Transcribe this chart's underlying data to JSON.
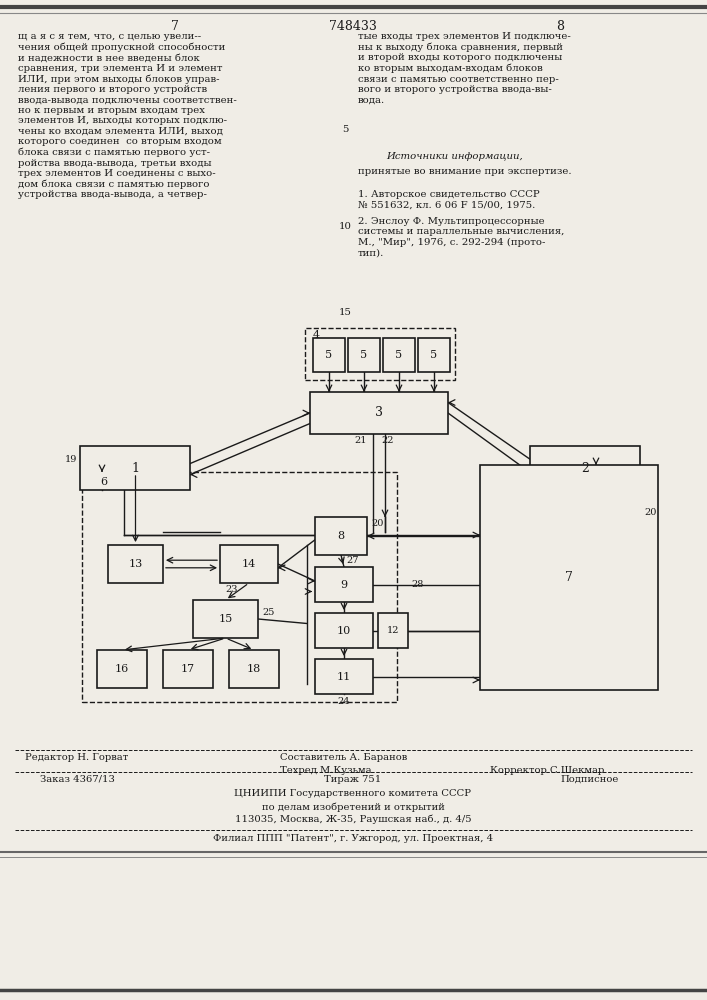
{
  "page_num_left": "7",
  "patent_num": "748433",
  "page_num_right": "8",
  "left_text": "щ а я с я тем, что, с целью увели--\nчения общей пропускной способности\nи надежности в нее введены блок\nсравнения, три элемента И и элемент\nИЛИ, при этом выходы блоков управ-\nления первого и второго устройств\nввода-вывода подключены соответствен-\nно к первым и вторым входам трех\nэлементов И, выходы которых подклю-\nчены ко входам элемента ИЛИ, выход\nкоторого соединен  со вторым входом\nблока связи с памятью первого уст-\nройства ввода-вывода, третьи входы\nтрех элементов И соединены с выхо-\nдом блока связи с памятью первого\nустройства ввода-вывода, а четвер-",
  "right_text_top": "тые входы трех элементов И подключе-\nны к выходу блока сравнения, первый\nи второй входы которого подключены\nко вторым выходам-входам блоков\nсвязи с памятью соответственно пер-\nвого и второго устройства ввода-вы-\nвода.",
  "line_num_5": "5",
  "sources_header": "Источники информации,",
  "sources_subheader": "принятые во внимание при экспертизе.",
  "line_num_10": "10",
  "source_1": "1. Авторское свидетельство СССР\n№ 551632, кл. 6 06 F 15/00, 1975.",
  "source_2": "2. Энслоу Ф. Мультипроцессорные\nсистемы и параллельные вычисления,\nМ., \"Мир\", 1976, с. 292-294 (прото-\nтип).",
  "line_num_15": "15",
  "editor_line": "Редактор Н. Горват",
  "composer_line": "Составитель А. Баранов",
  "techred_line": "Техред М.Кузьма",
  "corrector_line": "Корректор С.Шекмар",
  "order_line": "Заказ 4367/13",
  "tirazh_line": "Тираж 751",
  "podpisnoe_line": "Подписное",
  "org_line1": "ЦНИИПИ Государственного комитета СССР",
  "org_line2": "по делам изобретений и открытий",
  "org_line3": "113035, Москва, Ж-35, Раушская наб., д. 4/5",
  "branch_line": "Филиал ППП \"Патент\", г. Ужгород, ул. Проектная, 4",
  "bg_color": "#f0ede6",
  "text_color": "#1a1a1a"
}
